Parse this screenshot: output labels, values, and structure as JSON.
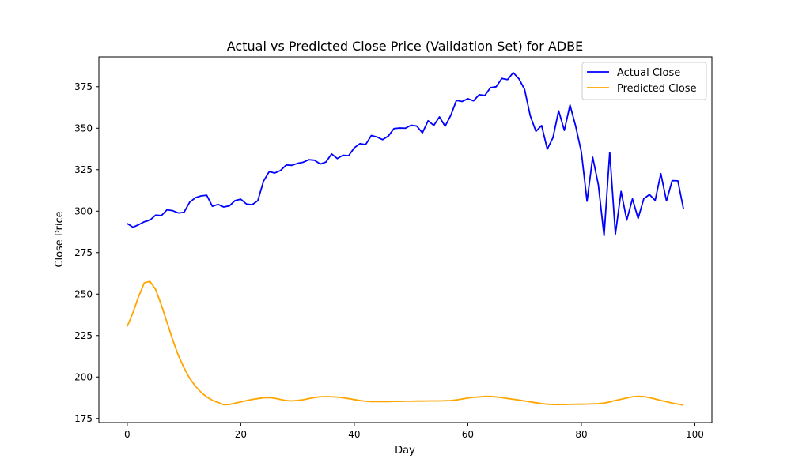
{
  "chart_data": {
    "type": "line",
    "title": "Actual vs Predicted Close Price (Validation Set) for ADBE",
    "xlabel": "Day",
    "ylabel": "Close Price",
    "xlim": [
      -5,
      103
    ],
    "ylim": [
      172.5,
      393
    ],
    "xticks": [
      0,
      20,
      40,
      60,
      80,
      100
    ],
    "yticks": [
      175,
      200,
      225,
      250,
      275,
      300,
      325,
      350,
      375
    ],
    "grid": false,
    "legend_position": "top-right",
    "x": [
      0,
      1,
      2,
      3,
      4,
      5,
      6,
      7,
      8,
      9,
      10,
      11,
      12,
      13,
      14,
      15,
      16,
      17,
      18,
      19,
      20,
      21,
      22,
      23,
      24,
      25,
      26,
      27,
      28,
      29,
      30,
      31,
      32,
      33,
      34,
      35,
      36,
      37,
      38,
      39,
      40,
      41,
      42,
      43,
      44,
      45,
      46,
      47,
      48,
      49,
      50,
      51,
      52,
      53,
      54,
      55,
      56,
      57,
      58,
      59,
      60,
      61,
      62,
      63,
      64,
      65,
      66,
      67,
      68,
      69,
      70,
      71,
      72,
      73,
      74,
      75,
      76,
      77,
      78,
      79,
      80,
      81,
      82,
      83,
      84,
      85,
      86,
      87,
      88,
      89,
      90,
      91,
      92,
      93,
      94,
      95,
      96,
      97,
      98
    ],
    "series": [
      {
        "name": "Actual Close",
        "color": "#0000ff",
        "values": [
          292.5,
          290.3,
          291.8,
          293.6,
          294.6,
          297.6,
          297.3,
          300.8,
          300.3,
          298.9,
          299.3,
          305.4,
          308.1,
          309.2,
          309.6,
          302.9,
          304.1,
          302.5,
          303.2,
          306.4,
          307.2,
          304.3,
          303.9,
          306.3,
          318.0,
          323.8,
          323.0,
          324.5,
          327.8,
          327.6,
          328.8,
          329.5,
          331.0,
          330.7,
          328.4,
          329.6,
          334.5,
          331.7,
          333.7,
          333.4,
          338.2,
          340.7,
          340.1,
          345.6,
          344.7,
          343.1,
          345.3,
          349.8,
          350.1,
          350.0,
          351.8,
          351.3,
          347.2,
          354.5,
          351.7,
          356.8,
          351.2,
          357.8,
          366.8,
          366.1,
          367.8,
          366.5,
          370.2,
          369.7,
          374.5,
          375.0,
          380.0,
          379.3,
          383.5,
          379.8,
          373.4,
          357.5,
          348.1,
          351.6,
          337.4,
          344.3,
          360.5,
          348.7,
          364.0,
          351.2,
          335.7,
          306.0,
          332.5,
          315.8,
          285.2,
          335.5,
          286.2,
          311.9,
          294.6,
          307.4,
          295.6,
          307.5,
          310.0,
          306.5,
          322.6,
          306.2,
          318.4,
          318.3,
          301.2
        ]
      },
      {
        "name": "Predicted Close",
        "color": "#ffa500",
        "values": [
          230.5,
          238.8,
          248.5,
          256.8,
          257.6,
          252.8,
          243.5,
          233.0,
          222.5,
          213.0,
          205.5,
          199.2,
          194.5,
          190.8,
          188.0,
          186.0,
          184.6,
          183.3,
          183.4,
          184.2,
          185.0,
          185.8,
          186.5,
          187.0,
          187.5,
          187.6,
          187.2,
          186.5,
          185.8,
          185.6,
          185.9,
          186.3,
          187.0,
          187.7,
          188.1,
          188.2,
          188.1,
          187.9,
          187.5,
          187.0,
          186.4,
          185.8,
          185.4,
          185.2,
          185.2,
          185.2,
          185.2,
          185.3,
          185.3,
          185.4,
          185.4,
          185.5,
          185.5,
          185.6,
          185.6,
          185.6,
          185.7,
          185.8,
          186.2,
          186.8,
          187.3,
          187.8,
          188.0,
          188.3,
          188.3,
          188.0,
          187.6,
          187.1,
          186.6,
          186.1,
          185.6,
          185.0,
          184.5,
          184.0,
          183.6,
          183.4,
          183.4,
          183.4,
          183.5,
          183.6,
          183.6,
          183.7,
          183.8,
          183.9,
          184.3,
          185.0,
          185.9,
          186.6,
          187.4,
          188.1,
          188.4,
          188.2,
          187.6,
          186.8,
          185.9,
          185.1,
          184.3,
          183.7,
          183.0
        ]
      }
    ]
  }
}
